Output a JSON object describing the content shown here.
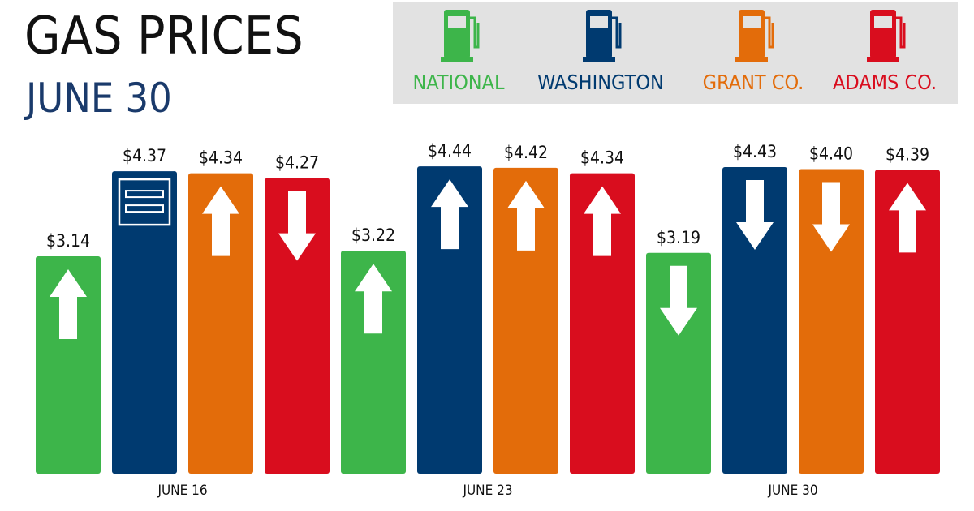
{
  "chart_data": {
    "type": "bar",
    "title": "GAS PRICES",
    "subtitle": "JUNE 30",
    "categories": [
      "JUNE 16",
      "JUNE 23",
      "JUNE 30"
    ],
    "series": [
      {
        "name": "NATIONAL",
        "color": "#3db54a",
        "values": [
          3.14,
          3.22,
          3.19
        ],
        "value_labels": [
          "$3.14",
          "$3.22",
          "$3.19"
        ],
        "trends": [
          "up",
          "up",
          "down"
        ]
      },
      {
        "name": "WASHINGTON",
        "color": "#003a70",
        "values": [
          4.37,
          4.44,
          4.43
        ],
        "value_labels": [
          "$4.37",
          "$4.44",
          "$4.43"
        ],
        "trends": [
          "equal",
          "up",
          "down"
        ]
      },
      {
        "name": "GRANT CO.",
        "color": "#e36c0a",
        "values": [
          4.34,
          4.42,
          4.4
        ],
        "value_labels": [
          "$4.34",
          "$4.42",
          "$4.40"
        ],
        "trends": [
          "up",
          "up",
          "down"
        ]
      },
      {
        "name": "ADAMS CO.",
        "color": "#d90d1e",
        "values": [
          4.27,
          4.34,
          4.39
        ],
        "value_labels": [
          "$4.27",
          "$4.34",
          "$4.39"
        ],
        "trends": [
          "down",
          "up",
          "up"
        ]
      }
    ],
    "ylim": [
      0,
      4.5
    ]
  }
}
